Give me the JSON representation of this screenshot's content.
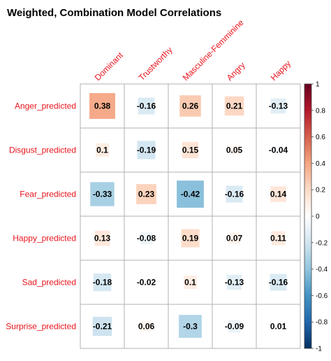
{
  "chart_data": {
    "type": "heatmap",
    "title": "Weighted, Combination Model Correlations",
    "rows": [
      "Anger_predicted",
      "Disgust_predicted",
      "Fear_predicted",
      "Happy_predicted",
      "Sad_predicted",
      "Surprise_predicted"
    ],
    "columns": [
      "Dominant",
      "Trustworthy",
      "Masculine-Femminine",
      "Angry",
      "Happy"
    ],
    "values": [
      [
        0.38,
        -0.16,
        0.26,
        0.21,
        -0.13
      ],
      [
        0.1,
        -0.19,
        0.15,
        0.05,
        -0.04
      ],
      [
        -0.33,
        0.23,
        -0.42,
        -0.16,
        0.14
      ],
      [
        0.13,
        -0.08,
        0.19,
        0.07,
        0.11
      ],
      [
        -0.18,
        -0.02,
        0.1,
        -0.13,
        -0.16
      ],
      [
        -0.21,
        0.06,
        -0.3,
        -0.09,
        0.01
      ]
    ],
    "value_labels": [
      [
        "0.38",
        "-0.16",
        "0.26",
        "0.21",
        "-0.13"
      ],
      [
        "0.1",
        "-0.19",
        "0.15",
        "0.05",
        "-0.04"
      ],
      [
        "-0.33",
        "0.23",
        "-0.42",
        "-0.16",
        "0.14"
      ],
      [
        "0.13",
        "-0.08",
        "0.19",
        "0.07",
        "0.11"
      ],
      [
        "-0.18",
        "-0.02",
        "0.1",
        "-0.13",
        "-0.16"
      ],
      [
        "-0.21",
        "0.06",
        "-0.3",
        "-0.09",
        "0.01"
      ]
    ],
    "color_scale": {
      "range": [
        -1,
        1
      ],
      "ticks": [
        "1",
        "0.8",
        "0.6",
        "0.4",
        "0.2",
        "0",
        "-0.2",
        "-0.4",
        "-0.6",
        "-0.8",
        "-1"
      ],
      "stops": [
        "#053061",
        "#2166ac",
        "#4393c3",
        "#92c5de",
        "#d1e5f0",
        "#ffffff",
        "#fddbc7",
        "#f4a582",
        "#d6604d",
        "#b2182b",
        "#67001f"
      ]
    },
    "label_color": "#e8141c",
    "grid": true
  }
}
